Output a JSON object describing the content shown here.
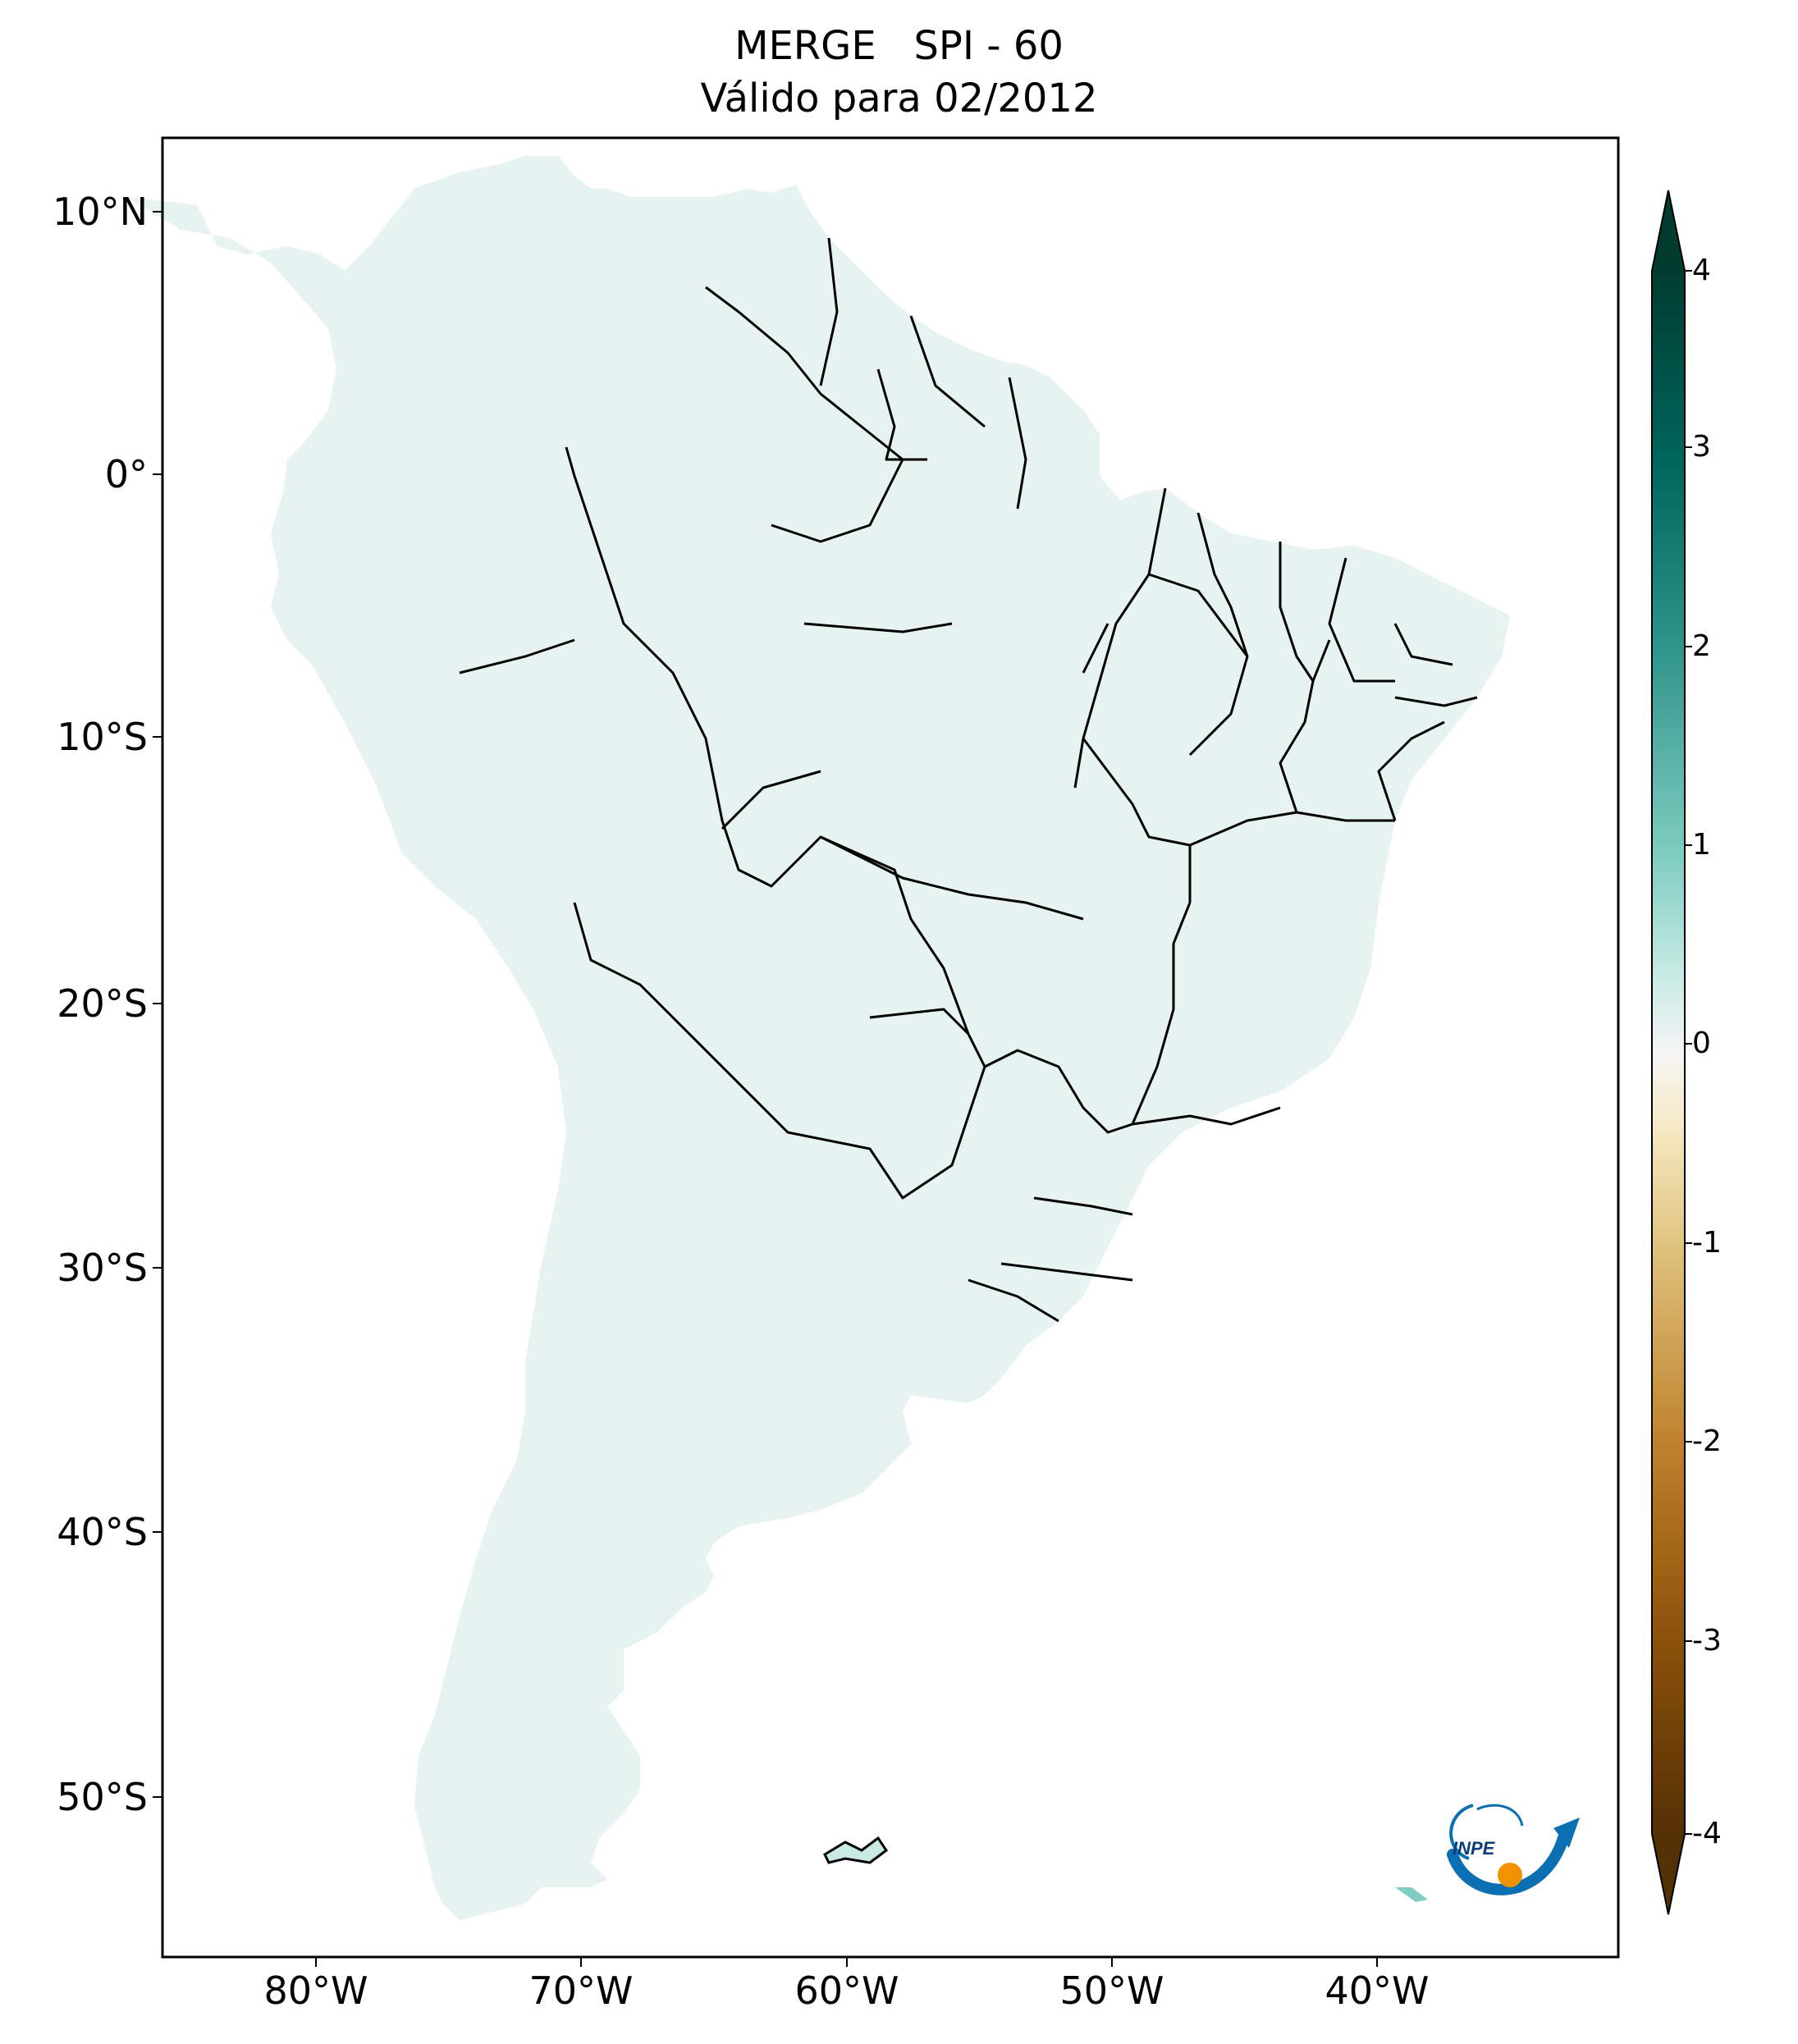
{
  "title": {
    "line1": "MERGE   SPI - 60",
    "line2": "Válido para 02/2012"
  },
  "axes": {
    "lat_labels": [
      "10°N",
      "0°",
      "10°S",
      "20°S",
      "30°S",
      "40°S",
      "50°S"
    ],
    "lon_labels": [
      "80°W",
      "70°W",
      "60°W",
      "50°W",
      "40°W"
    ]
  },
  "colorbar": {
    "min": -4,
    "max": 4,
    "tick_labels": [
      "4",
      "3",
      "2",
      "1",
      "0",
      "-1",
      "-2",
      "-3",
      "-4"
    ],
    "colormap": "BrBG",
    "extend": "both",
    "colors": {
      "neg4": "#543005",
      "neg3": "#8c510a",
      "neg2": "#bf812d",
      "neg1": "#dfc27d",
      "neg05": "#f6e8c3",
      "zero": "#f5f5f5",
      "pos05": "#c7eae5",
      "pos1": "#80cdc1",
      "pos2": "#35978f",
      "pos3": "#01665e",
      "pos4": "#003c30"
    }
  },
  "logo": {
    "text": "INPE",
    "colors": {
      "blue": "#0a6fb3",
      "orange": "#f39200"
    }
  },
  "map": {
    "region": "South America",
    "lon_range": [
      -85,
      -30
    ],
    "lat_range": [
      -56,
      13
    ],
    "ocean_color": "#ffffff",
    "border_color": "#000000"
  }
}
